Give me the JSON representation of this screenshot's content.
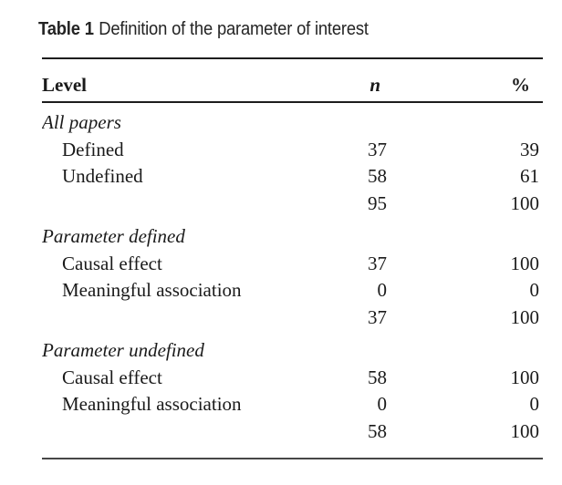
{
  "caption": {
    "label": "Table 1",
    "text": "Definition of the parameter of interest"
  },
  "table": {
    "columns": {
      "level": "Level",
      "n": "n",
      "percent": "%"
    },
    "rows": [
      {
        "type": "section",
        "label": "All papers",
        "n": "",
        "pct": ""
      },
      {
        "type": "item",
        "label": "Defined",
        "n": "37",
        "pct": "39"
      },
      {
        "type": "item",
        "label": "Undefined",
        "n": "58",
        "pct": "61"
      },
      {
        "type": "total",
        "label": "",
        "n": "95",
        "pct": "100"
      },
      {
        "type": "section",
        "label": "Parameter defined",
        "n": "",
        "pct": ""
      },
      {
        "type": "item",
        "label": "Causal effect",
        "n": "37",
        "pct": "100"
      },
      {
        "type": "item",
        "label": "Meaningful association",
        "n": "0",
        "pct": "0"
      },
      {
        "type": "total",
        "label": "",
        "n": "37",
        "pct": "100"
      },
      {
        "type": "section",
        "label": "Parameter undefined",
        "n": "",
        "pct": ""
      },
      {
        "type": "item",
        "label": "Causal effect",
        "n": "58",
        "pct": "100"
      },
      {
        "type": "item",
        "label": "Meaningful association",
        "n": "0",
        "pct": "0"
      },
      {
        "type": "total",
        "label": "",
        "n": "58",
        "pct": "100"
      }
    ]
  },
  "colors": {
    "background": "#ffffff",
    "text": "#1a1a1a",
    "rule": "#1d1d1d"
  }
}
